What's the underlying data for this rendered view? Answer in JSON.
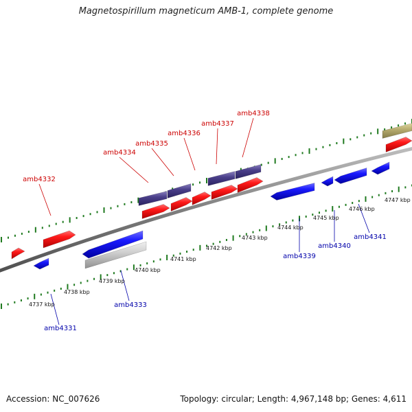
{
  "title": "Magnetospirillum magneticum AMB-1, complete genome",
  "footer": {
    "accession": "Accession: NC_007626",
    "topology": "Topology: circular; Length: 4,967,148 bp; Genes: 4,611"
  },
  "scale_labels": [
    "4737 kbp",
    "4738 kbp",
    "4739 kbp",
    "4740 kbp",
    "4741 kbp",
    "4742 kbp",
    "4743 kbp",
    "4744 kbp",
    "4745 kbp",
    "4746 kbp",
    "4747 kbp"
  ],
  "gene_labels_top": [
    "amb4332",
    "amb4334",
    "amb4335",
    "amb4336",
    "amb4337",
    "amb4338"
  ],
  "gene_labels_bottom": [
    "amb4331",
    "amb4333",
    "amb4339",
    "amb4340",
    "amb4341"
  ],
  "colors": {
    "forward_gene": "#ff0000",
    "reverse_gene": "#0000ee",
    "purple_gene": "#4a3f8a",
    "grey_gene": "#c8c8c8",
    "olive_gene": "#b8ad70",
    "backbone": "#808080",
    "tick": "#1f7a1f",
    "forward_label": "#cc0000",
    "reverse_label": "#0000aa"
  }
}
